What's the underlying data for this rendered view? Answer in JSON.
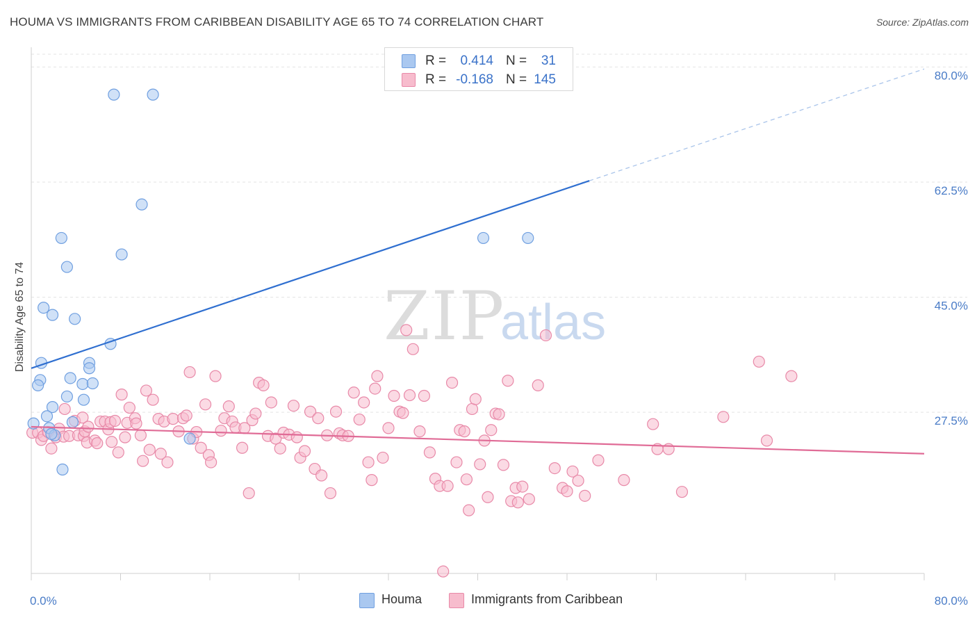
{
  "title": "HOUMA VS IMMIGRANTS FROM CARIBBEAN DISABILITY AGE 65 TO 74 CORRELATION CHART",
  "source": "Source: ZipAtlas.com",
  "watermark": {
    "zip": "ZIP",
    "atlas": "atlas"
  },
  "legend": {
    "rows": [
      {
        "r_label": "R =",
        "r_value": "0.414",
        "n_label": "N =",
        "n_value": "31",
        "color": "#aac8f0",
        "border": "#6f9fe0"
      },
      {
        "r_label": "R =",
        "r_value": "-0.168",
        "n_label": "N =",
        "n_value": "145",
        "color": "#f7bccd",
        "border": "#e889a8"
      }
    ]
  },
  "chart_data": {
    "type": "scatter",
    "xlabel": "",
    "ylabel": "Disability Age 65 to 74",
    "xlim": [
      0,
      80
    ],
    "ylim": [
      3,
      83
    ],
    "x_ticks_labeled": [
      "0.0%",
      "80.0%"
    ],
    "y_ticks": [
      {
        "value": 27.5,
        "label": "27.5%"
      },
      {
        "value": 45.0,
        "label": "45.0%"
      },
      {
        "value": 62.5,
        "label": "62.5%"
      },
      {
        "value": 80.0,
        "label": "80.0%"
      }
    ],
    "grid": true,
    "legend_position": "top-center",
    "series": [
      {
        "name": "Houma",
        "color": "#aac8f0",
        "stroke": "#6f9fe0",
        "trend_color": "#2f6fd0",
        "trend": {
          "x0": 0,
          "y0": 34.2,
          "x1": 50,
          "y1": 62.7,
          "x_dash_end": 80,
          "y_dash_end": 79.7
        },
        "points": [
          [
            7.4,
            75.8
          ],
          [
            10.9,
            75.8
          ],
          [
            9.9,
            59.1
          ],
          [
            2.7,
            54.0
          ],
          [
            8.1,
            51.5
          ],
          [
            3.2,
            49.6
          ],
          [
            1.1,
            43.4
          ],
          [
            1.9,
            42.3
          ],
          [
            3.9,
            41.7
          ],
          [
            7.1,
            37.9
          ],
          [
            0.9,
            35.0
          ],
          [
            5.2,
            35.0
          ],
          [
            5.2,
            34.2
          ],
          [
            0.8,
            32.4
          ],
          [
            3.5,
            32.7
          ],
          [
            4.6,
            31.8
          ],
          [
            5.5,
            31.9
          ],
          [
            0.6,
            31.6
          ],
          [
            3.2,
            29.9
          ],
          [
            1.9,
            28.3
          ],
          [
            4.7,
            29.4
          ],
          [
            1.4,
            26.9
          ],
          [
            0.2,
            25.8
          ],
          [
            3.7,
            26.0
          ],
          [
            1.6,
            25.1
          ],
          [
            2.1,
            24.0
          ],
          [
            40.5,
            54.0
          ],
          [
            44.5,
            54.0
          ],
          [
            14.2,
            23.5
          ],
          [
            2.8,
            18.8
          ],
          [
            1.8,
            24.2
          ]
        ]
      },
      {
        "name": "Immigrants from Caribbean",
        "color": "#f7bccd",
        "stroke": "#e889a8",
        "trend_color": "#e06b96",
        "trend": {
          "x0": 0,
          "y0": 25.3,
          "x1": 80,
          "y1": 21.2
        },
        "points": [
          [
            0.1,
            24.4
          ],
          [
            0.6,
            24.4
          ],
          [
            0.9,
            23.3
          ],
          [
            1.1,
            23.9
          ],
          [
            1.5,
            24.5
          ],
          [
            1.8,
            22.0
          ],
          [
            2.2,
            23.7
          ],
          [
            2.5,
            25.0
          ],
          [
            2.9,
            23.8
          ],
          [
            3.0,
            28.0
          ],
          [
            3.4,
            23.9
          ],
          [
            3.9,
            26.2
          ],
          [
            4.2,
            24.0
          ],
          [
            4.6,
            26.7
          ],
          [
            4.7,
            23.9
          ],
          [
            4.8,
            24.6
          ],
          [
            5.0,
            22.9
          ],
          [
            5.1,
            25.3
          ],
          [
            5.7,
            23.2
          ],
          [
            5.9,
            22.8
          ],
          [
            6.2,
            26.1
          ],
          [
            6.6,
            26.1
          ],
          [
            6.9,
            24.9
          ],
          [
            7.1,
            26.0
          ],
          [
            7.2,
            23.0
          ],
          [
            7.5,
            26.2
          ],
          [
            7.8,
            21.4
          ],
          [
            8.1,
            30.2
          ],
          [
            8.4,
            23.7
          ],
          [
            8.6,
            25.9
          ],
          [
            8.8,
            28.2
          ],
          [
            9.3,
            26.6
          ],
          [
            9.4,
            25.8
          ],
          [
            9.8,
            24.0
          ],
          [
            10.0,
            20.1
          ],
          [
            10.3,
            30.8
          ],
          [
            10.6,
            21.8
          ],
          [
            10.9,
            29.4
          ],
          [
            11.4,
            26.5
          ],
          [
            11.6,
            21.2
          ],
          [
            11.9,
            26.1
          ],
          [
            12.2,
            19.9
          ],
          [
            12.7,
            26.5
          ],
          [
            13.2,
            24.6
          ],
          [
            13.6,
            26.6
          ],
          [
            13.9,
            27.0
          ],
          [
            14.2,
            33.6
          ],
          [
            14.5,
            23.5
          ],
          [
            14.8,
            24.5
          ],
          [
            15.2,
            22.1
          ],
          [
            15.6,
            28.7
          ],
          [
            15.9,
            21.0
          ],
          [
            16.1,
            19.9
          ],
          [
            16.5,
            33.0
          ],
          [
            17.0,
            24.7
          ],
          [
            17.3,
            26.6
          ],
          [
            17.7,
            28.4
          ],
          [
            18.0,
            26.1
          ],
          [
            18.3,
            25.2
          ],
          [
            18.9,
            22.1
          ],
          [
            19.1,
            25.1
          ],
          [
            19.5,
            15.2
          ],
          [
            19.8,
            26.3
          ],
          [
            20.1,
            27.3
          ],
          [
            20.4,
            32.0
          ],
          [
            20.8,
            31.6
          ],
          [
            21.2,
            23.9
          ],
          [
            21.5,
            29.0
          ],
          [
            21.9,
            23.5
          ],
          [
            22.3,
            22.0
          ],
          [
            22.6,
            24.4
          ],
          [
            23.1,
            24.1
          ],
          [
            23.5,
            28.5
          ],
          [
            23.8,
            23.7
          ],
          [
            24.1,
            20.6
          ],
          [
            24.5,
            21.6
          ],
          [
            25.0,
            27.6
          ],
          [
            25.4,
            18.9
          ],
          [
            25.7,
            26.6
          ],
          [
            26.0,
            17.9
          ],
          [
            26.5,
            24.0
          ],
          [
            26.8,
            15.2
          ],
          [
            27.3,
            27.6
          ],
          [
            27.6,
            24.3
          ],
          [
            27.9,
            24.0
          ],
          [
            28.4,
            23.9
          ],
          [
            28.9,
            30.5
          ],
          [
            29.4,
            26.4
          ],
          [
            29.8,
            29.0
          ],
          [
            30.2,
            19.9
          ],
          [
            30.5,
            17.2
          ],
          [
            31.0,
            33.0
          ],
          [
            30.8,
            31.1
          ],
          [
            31.5,
            20.6
          ],
          [
            32.0,
            25.1
          ],
          [
            32.5,
            30.0
          ],
          [
            33.0,
            27.6
          ],
          [
            33.3,
            27.4
          ],
          [
            33.6,
            40.0
          ],
          [
            33.9,
            30.1
          ],
          [
            34.2,
            37.1
          ],
          [
            34.8,
            24.6
          ],
          [
            35.2,
            30.0
          ],
          [
            35.7,
            21.4
          ],
          [
            36.2,
            17.4
          ],
          [
            36.6,
            16.3
          ],
          [
            36.9,
            3.3
          ],
          [
            37.3,
            16.3
          ],
          [
            37.7,
            32.0
          ],
          [
            38.1,
            19.9
          ],
          [
            38.4,
            24.8
          ],
          [
            38.8,
            24.6
          ],
          [
            39.0,
            17.3
          ],
          [
            39.2,
            12.6
          ],
          [
            39.5,
            28.0
          ],
          [
            39.8,
            29.5
          ],
          [
            40.2,
            19.6
          ],
          [
            40.6,
            23.2
          ],
          [
            40.9,
            14.6
          ],
          [
            41.2,
            24.8
          ],
          [
            41.6,
            27.3
          ],
          [
            41.9,
            27.2
          ],
          [
            42.3,
            19.5
          ],
          [
            42.7,
            32.3
          ],
          [
            43.0,
            14.0
          ],
          [
            43.4,
            16.0
          ],
          [
            43.6,
            13.8
          ],
          [
            44.0,
            16.2
          ],
          [
            44.6,
            14.3
          ],
          [
            45.4,
            31.6
          ],
          [
            46.1,
            39.2
          ],
          [
            46.9,
            19.0
          ],
          [
            47.6,
            16.0
          ],
          [
            48.0,
            15.5
          ],
          [
            48.5,
            18.5
          ],
          [
            49.0,
            17.1
          ],
          [
            49.6,
            14.8
          ],
          [
            50.8,
            20.2
          ],
          [
            53.1,
            17.2
          ],
          [
            55.7,
            25.7
          ],
          [
            56.1,
            21.9
          ],
          [
            57.1,
            21.9
          ],
          [
            58.3,
            15.4
          ],
          [
            62.0,
            26.8
          ],
          [
            65.2,
            35.2
          ],
          [
            65.9,
            23.2
          ],
          [
            68.1,
            33.0
          ]
        ]
      }
    ]
  },
  "bottom_legend": [
    "Houma",
    "Immigrants from Caribbean"
  ]
}
